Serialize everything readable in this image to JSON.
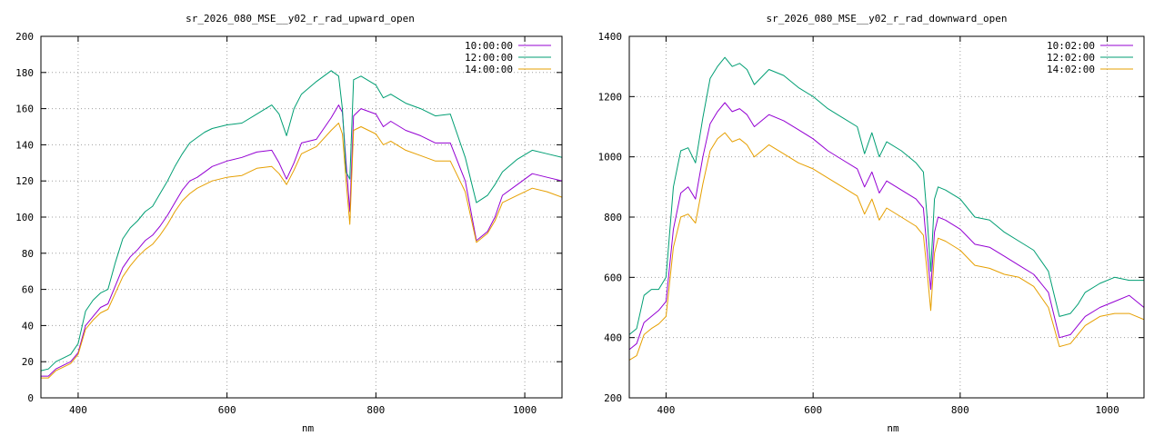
{
  "chart_data": [
    {
      "type": "line",
      "title": "sr_2026_080_MSE__y02_r_rad_upward_open",
      "xlabel": "nm",
      "ylabel": "",
      "xlim": [
        350,
        1050
      ],
      "ylim": [
        0,
        200
      ],
      "xticks": [
        400,
        600,
        800,
        1000
      ],
      "yticks": [
        0,
        20,
        40,
        60,
        80,
        100,
        120,
        140,
        160,
        180,
        200
      ],
      "grid": true,
      "legend_position": "top-right",
      "series": [
        {
          "name": "10:00:00",
          "color": "#9400d3",
          "x": [
            350,
            360,
            370,
            380,
            390,
            400,
            410,
            420,
            430,
            440,
            450,
            460,
            470,
            480,
            490,
            500,
            510,
            520,
            530,
            540,
            550,
            560,
            570,
            580,
            600,
            620,
            640,
            660,
            670,
            680,
            690,
            700,
            720,
            740,
            750,
            755,
            760,
            765,
            770,
            780,
            800,
            810,
            820,
            840,
            860,
            880,
            900,
            920,
            935,
            950,
            960,
            970,
            990,
            1010,
            1030,
            1050
          ],
          "y": [
            12,
            12,
            16,
            18,
            20,
            25,
            40,
            45,
            50,
            52,
            62,
            72,
            78,
            82,
            87,
            90,
            95,
            101,
            108,
            115,
            120,
            122,
            125,
            128,
            131,
            133,
            136,
            137,
            130,
            121,
            130,
            141,
            143,
            155,
            162,
            158,
            130,
            103,
            156,
            160,
            157,
            150,
            153,
            148,
            145,
            141,
            141,
            120,
            87,
            92,
            100,
            112,
            118,
            124,
            122,
            120
          ]
        },
        {
          "name": "12:00:00",
          "color": "#009e73",
          "x": [
            350,
            360,
            370,
            380,
            390,
            400,
            410,
            420,
            430,
            440,
            450,
            460,
            470,
            480,
            490,
            500,
            510,
            520,
            530,
            540,
            550,
            560,
            570,
            580,
            600,
            620,
            640,
            660,
            670,
            680,
            690,
            700,
            720,
            740,
            750,
            755,
            760,
            765,
            770,
            780,
            800,
            810,
            820,
            840,
            860,
            880,
            900,
            920,
            935,
            950,
            960,
            970,
            990,
            1010,
            1030,
            1050
          ],
          "y": [
            15,
            16,
            20,
            22,
            24,
            30,
            48,
            54,
            58,
            60,
            75,
            88,
            94,
            98,
            103,
            106,
            113,
            120,
            128,
            135,
            141,
            144,
            147,
            149,
            151,
            152,
            157,
            162,
            157,
            145,
            160,
            168,
            175,
            181,
            178,
            160,
            125,
            121,
            176,
            178,
            173,
            166,
            168,
            163,
            160,
            156,
            157,
            133,
            108,
            112,
            118,
            125,
            132,
            137,
            135,
            133
          ]
        },
        {
          "name": "14:00:00",
          "color": "#e69f00",
          "x": [
            350,
            360,
            370,
            380,
            390,
            400,
            410,
            420,
            430,
            440,
            450,
            460,
            470,
            480,
            490,
            500,
            510,
            520,
            530,
            540,
            550,
            560,
            570,
            580,
            600,
            620,
            640,
            660,
            670,
            680,
            690,
            700,
            720,
            740,
            750,
            755,
            760,
            765,
            770,
            780,
            800,
            810,
            820,
            840,
            860,
            880,
            900,
            920,
            935,
            950,
            960,
            970,
            990,
            1010,
            1030,
            1050
          ],
          "y": [
            11,
            11,
            15,
            17,
            19,
            24,
            38,
            43,
            47,
            49,
            58,
            67,
            73,
            78,
            82,
            85,
            90,
            96,
            103,
            109,
            113,
            116,
            118,
            120,
            122,
            123,
            127,
            128,
            124,
            118,
            126,
            135,
            139,
            148,
            152,
            146,
            120,
            96,
            148,
            150,
            146,
            140,
            142,
            137,
            134,
            131,
            131,
            114,
            86,
            91,
            98,
            108,
            112,
            116,
            114,
            111
          ]
        }
      ]
    },
    {
      "type": "line",
      "title": "sr_2026_080_MSE__y02_r_rad_downward_open",
      "xlabel": "nm",
      "ylabel": "",
      "xlim": [
        350,
        1050
      ],
      "ylim": [
        200,
        1400
      ],
      "xticks": [
        400,
        600,
        800,
        1000
      ],
      "yticks": [
        200,
        400,
        600,
        800,
        1000,
        1200,
        1400
      ],
      "grid": true,
      "legend_position": "top-right",
      "series": [
        {
          "name": "10:02:00",
          "color": "#9400d3",
          "x": [
            350,
            360,
            370,
            380,
            390,
            400,
            410,
            420,
            430,
            440,
            450,
            460,
            470,
            480,
            490,
            500,
            510,
            520,
            540,
            560,
            580,
            600,
            620,
            640,
            660,
            670,
            680,
            690,
            700,
            720,
            740,
            750,
            755,
            760,
            765,
            770,
            780,
            800,
            820,
            840,
            860,
            880,
            900,
            920,
            935,
            950,
            960,
            970,
            990,
            1010,
            1030,
            1050
          ],
          "y": [
            360,
            380,
            450,
            470,
            490,
            520,
            760,
            880,
            900,
            860,
            1000,
            1110,
            1150,
            1180,
            1150,
            1160,
            1140,
            1100,
            1140,
            1120,
            1090,
            1060,
            1020,
            990,
            960,
            900,
            950,
            880,
            920,
            890,
            860,
            830,
            690,
            560,
            750,
            800,
            790,
            760,
            710,
            700,
            670,
            640,
            610,
            550,
            400,
            410,
            440,
            470,
            500,
            520,
            540,
            500
          ]
        },
        {
          "name": "12:02:00",
          "color": "#009e73",
          "x": [
            350,
            360,
            370,
            380,
            390,
            400,
            410,
            420,
            430,
            440,
            450,
            460,
            470,
            480,
            490,
            500,
            510,
            520,
            540,
            560,
            580,
            600,
            620,
            640,
            660,
            670,
            680,
            690,
            700,
            720,
            740,
            750,
            755,
            760,
            765,
            770,
            780,
            800,
            820,
            840,
            860,
            880,
            900,
            920,
            935,
            950,
            960,
            970,
            990,
            1010,
            1030,
            1050
          ],
          "y": [
            410,
            430,
            540,
            560,
            560,
            600,
            900,
            1020,
            1030,
            980,
            1130,
            1260,
            1300,
            1330,
            1300,
            1310,
            1290,
            1240,
            1290,
            1270,
            1230,
            1200,
            1160,
            1130,
            1100,
            1010,
            1080,
            1000,
            1050,
            1020,
            980,
            950,
            800,
            620,
            860,
            900,
            890,
            860,
            800,
            790,
            750,
            720,
            690,
            620,
            470,
            480,
            510,
            550,
            580,
            600,
            590,
            590
          ]
        },
        {
          "name": "14:02:00",
          "color": "#e69f00",
          "x": [
            350,
            360,
            370,
            380,
            390,
            400,
            410,
            420,
            430,
            440,
            450,
            460,
            470,
            480,
            490,
            500,
            510,
            520,
            540,
            560,
            580,
            600,
            620,
            640,
            660,
            670,
            680,
            690,
            700,
            720,
            740,
            750,
            755,
            760,
            765,
            770,
            780,
            800,
            820,
            840,
            860,
            880,
            900,
            920,
            935,
            950,
            960,
            970,
            990,
            1010,
            1030,
            1050
          ],
          "y": [
            325,
            340,
            410,
            430,
            445,
            470,
            700,
            800,
            810,
            780,
            910,
            1020,
            1060,
            1080,
            1050,
            1060,
            1040,
            1000,
            1040,
            1010,
            980,
            960,
            930,
            900,
            870,
            810,
            860,
            790,
            830,
            800,
            770,
            740,
            620,
            490,
            680,
            730,
            720,
            690,
            640,
            630,
            610,
            600,
            570,
            500,
            370,
            380,
            410,
            440,
            470,
            480,
            480,
            460
          ]
        }
      ]
    }
  ]
}
